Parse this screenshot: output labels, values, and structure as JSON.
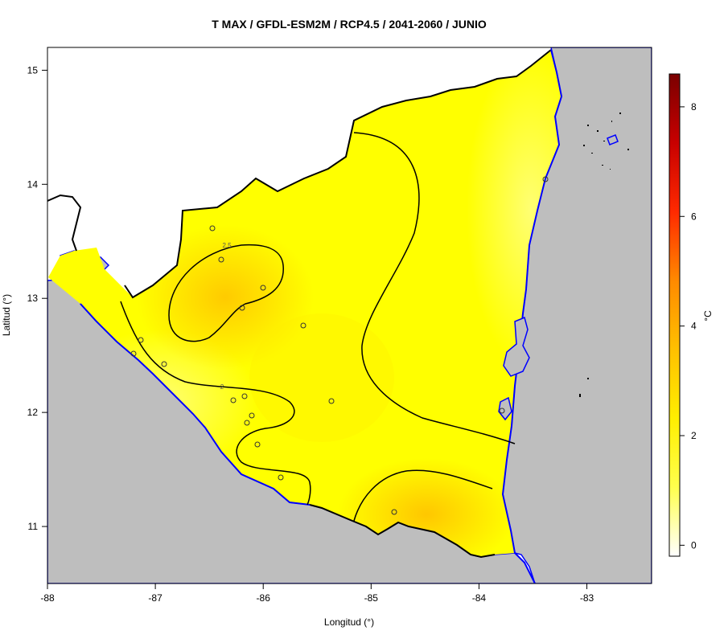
{
  "title": "T MAX / GFDL-ESM2M / RCP4.5 / 2041-2060 / JUNIO",
  "x_axis": {
    "label": "Longitud (°)",
    "ticks": [
      "-88",
      "-87",
      "-86",
      "-85",
      "-84",
      "-83"
    ],
    "range": [
      -88,
      -82.4
    ]
  },
  "y_axis": {
    "label": "Latitud (°)",
    "ticks": [
      "11",
      "12",
      "13",
      "14",
      "15"
    ],
    "range": [
      10.5,
      15.2
    ]
  },
  "colorbar": {
    "label": "°C",
    "ticks": [
      "0",
      "2",
      "4",
      "6",
      "8"
    ],
    "range": [
      -0.2,
      8.6
    ],
    "colors": [
      "#ffffff",
      "#ffff4d",
      "#ffee00",
      "#ffc000",
      "#ff8a00",
      "#ff2a00",
      "#c80000",
      "#7a0000"
    ]
  },
  "contour_labels": [
    "2",
    "2.5"
  ],
  "colors": {
    "sea": "#bebebe",
    "coastline": "#0000ff",
    "border": "#000000",
    "land_base": "#ffff00"
  }
}
